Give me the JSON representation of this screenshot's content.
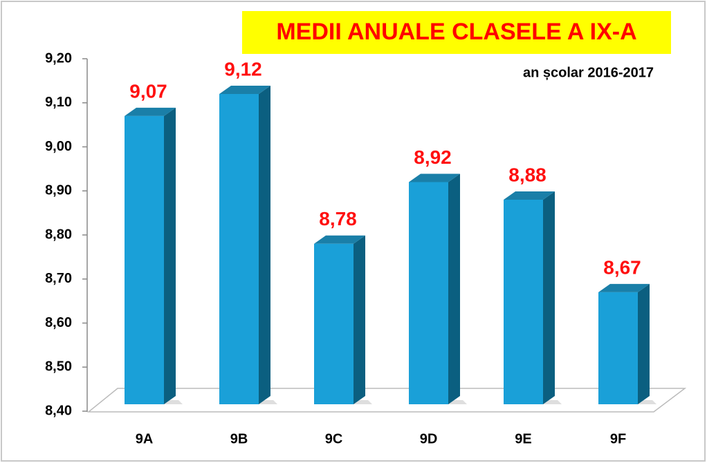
{
  "chart_data": {
    "type": "bar3d",
    "title": "MEDII ANUALE CLASELE A IX-A",
    "subtitle": "an școlar 2016-2017",
    "categories": [
      "9A",
      "9B",
      "9C",
      "9D",
      "9E",
      "9F"
    ],
    "values": [
      9.07,
      9.12,
      8.78,
      8.92,
      8.88,
      8.67
    ],
    "value_labels": [
      "9,07",
      "9,12",
      "8,78",
      "8,92",
      "8,88",
      "8,67"
    ],
    "color": "#1aa0d8",
    "ylim": [
      8.4,
      9.2
    ],
    "yticks": [
      {
        "value": 8.4,
        "label": "8,40"
      },
      {
        "value": 8.5,
        "label": "8,50"
      },
      {
        "value": 8.6,
        "label": "8,60"
      },
      {
        "value": 8.7,
        "label": "8,70"
      },
      {
        "value": 8.8,
        "label": "8,80"
      },
      {
        "value": 8.9,
        "label": "8,90"
      },
      {
        "value": 9.0,
        "label": "9,00"
      },
      {
        "value": 9.1,
        "label": "9,10"
      },
      {
        "value": 9.2,
        "label": "9,20"
      }
    ]
  }
}
